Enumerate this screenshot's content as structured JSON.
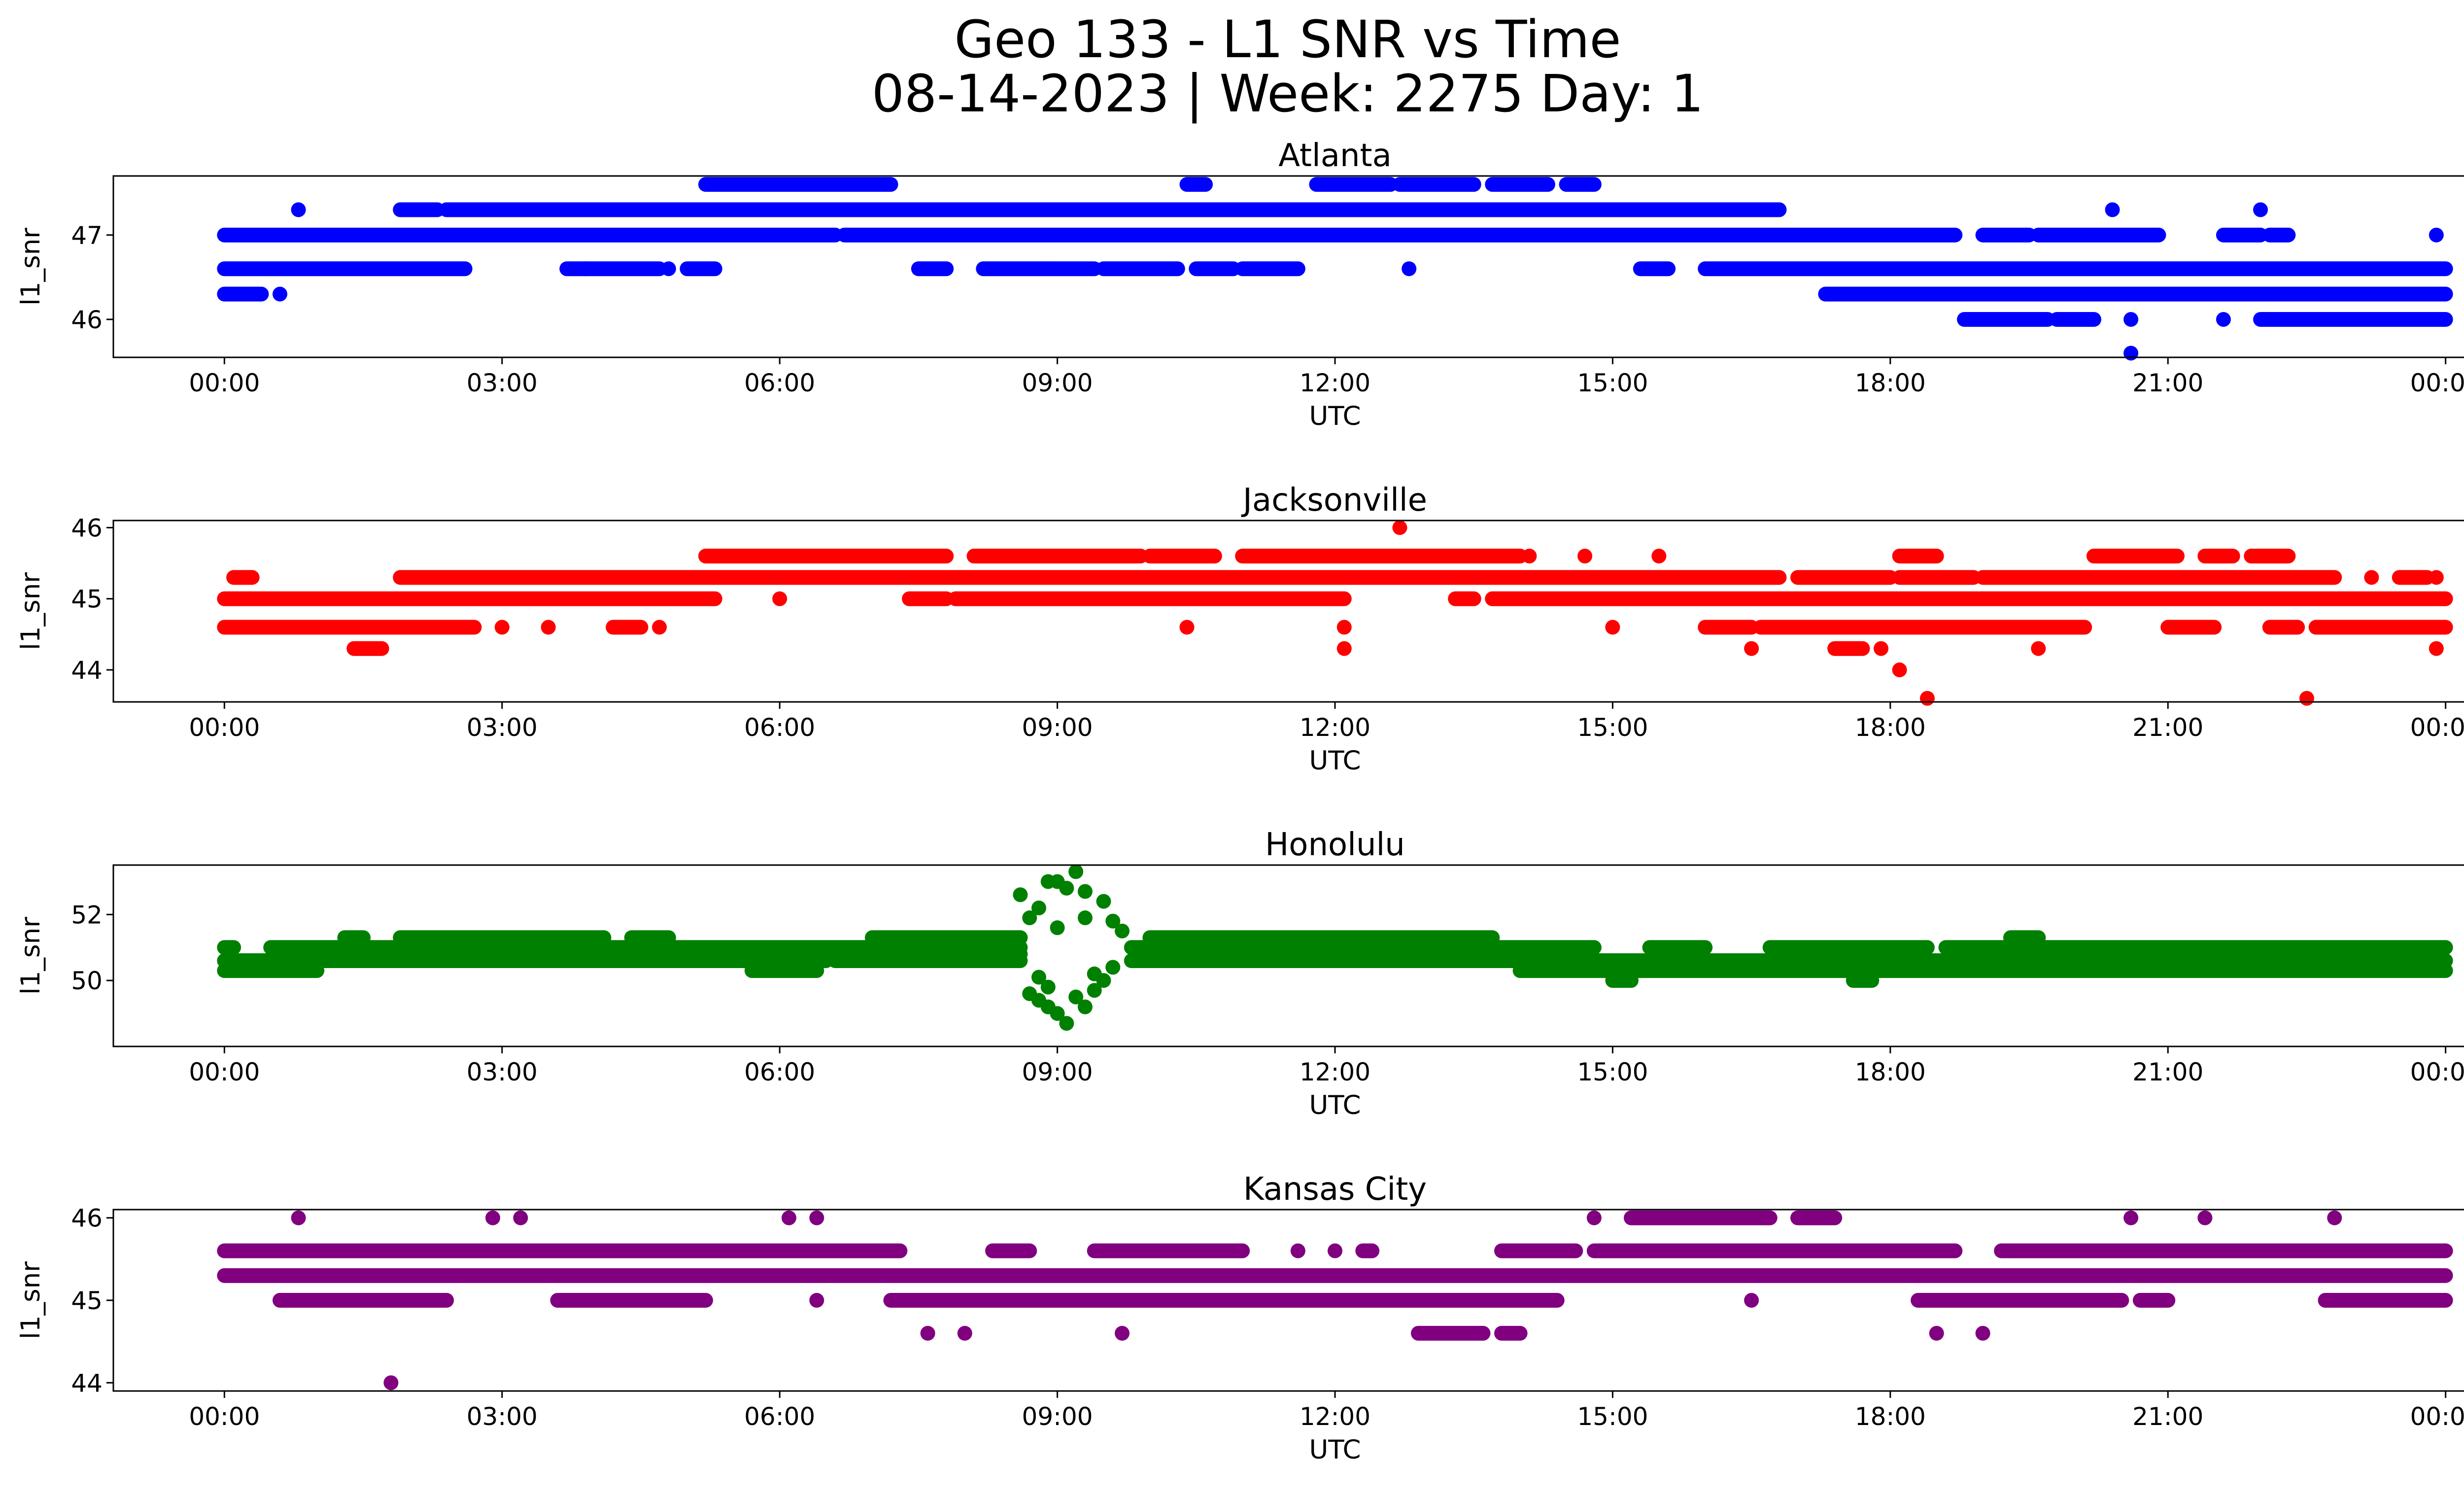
{
  "figure": {
    "title_line1": "Geo 133 - L1 SNR vs Time",
    "title_line2": "08-14-2023 | Week: 2275 Day: 1"
  },
  "chart_data": [
    {
      "type": "scatter",
      "title": "Atlanta",
      "xlabel": "UTC",
      "ylabel": "l1_snr",
      "color": "#0000ff",
      "xticks": [
        "00:00",
        "03:00",
        "06:00",
        "09:00",
        "12:00",
        "15:00",
        "18:00",
        "21:00",
        "00:00"
      ],
      "yticks": [
        46,
        47
      ],
      "xlim_hours": [
        -1.2,
        25.2
      ],
      "ylim": [
        45.55,
        47.7
      ],
      "grid": false,
      "bands": [
        {
          "y": 47.6,
          "ranges": [
            [
              5.2,
              7.2
            ],
            [
              10.4,
              10.6
            ],
            [
              11.8,
              12.6
            ],
            [
              12.7,
              13.5
            ],
            [
              13.7,
              14.3
            ],
            [
              14.5,
              14.8
            ]
          ]
        },
        {
          "y": 47.3,
          "ranges": [
            [
              1.9,
              2.3
            ],
            [
              2.4,
              16.8
            ]
          ]
        },
        {
          "y": 47.0,
          "ranges": [
            [
              0.0,
              6.6
            ],
            [
              6.7,
              18.7
            ],
            [
              19.0,
              19.5
            ],
            [
              19.6,
              20.9
            ],
            [
              21.6,
              22.0
            ],
            [
              22.1,
              22.3
            ]
          ]
        },
        {
          "y": 46.6,
          "ranges": [
            [
              0.0,
              2.6
            ],
            [
              3.7,
              4.7
            ],
            [
              5.0,
              5.3
            ],
            [
              7.5,
              7.8
            ],
            [
              8.2,
              8.9
            ],
            [
              8.9,
              9.4
            ],
            [
              9.5,
              10.3
            ],
            [
              10.5,
              10.9
            ],
            [
              11.0,
              11.6
            ],
            [
              15.3,
              15.6
            ],
            [
              16.0,
              24.0
            ]
          ]
        },
        {
          "y": 46.3,
          "ranges": [
            [
              0.0,
              0.4
            ],
            [
              17.3,
              24.0
            ]
          ]
        },
        {
          "y": 46.0,
          "ranges": [
            [
              18.8,
              19.7
            ],
            [
              19.8,
              20.2
            ],
            [
              22.0,
              24.0
            ]
          ]
        }
      ],
      "points": [
        [
          0.8,
          47.3
        ],
        [
          0.6,
          46.3
        ],
        [
          3.9,
          46.6
        ],
        [
          4.8,
          46.6
        ],
        [
          12.8,
          46.6
        ],
        [
          20.4,
          47.3
        ],
        [
          22.0,
          47.3
        ],
        [
          23.9,
          47.0
        ],
        [
          20.6,
          46.0
        ],
        [
          20.6,
          45.6
        ],
        [
          21.6,
          46.0
        ]
      ]
    },
    {
      "type": "scatter",
      "title": "Jacksonville",
      "xlabel": "UTC",
      "ylabel": "l1_snr",
      "color": "#ff0000",
      "xticks": [
        "00:00",
        "03:00",
        "06:00",
        "09:00",
        "12:00",
        "15:00",
        "18:00",
        "21:00",
        "00:00"
      ],
      "yticks": [
        44,
        45,
        46
      ],
      "xlim_hours": [
        -1.2,
        25.2
      ],
      "ylim": [
        43.55,
        46.1
      ],
      "grid": false,
      "bands": [
        {
          "y": 45.6,
          "ranges": [
            [
              5.2,
              7.8
            ],
            [
              8.1,
              9.5
            ],
            [
              9.5,
              9.9
            ],
            [
              10.0,
              10.7
            ],
            [
              11.0,
              14.0
            ],
            [
              18.1,
              18.5
            ],
            [
              20.2,
              21.1
            ],
            [
              21.4,
              21.7
            ],
            [
              21.9,
              22.3
            ]
          ]
        },
        {
          "y": 45.3,
          "ranges": [
            [
              0.1,
              0.3
            ],
            [
              1.9,
              5.2
            ],
            [
              5.2,
              16.8
            ],
            [
              17.0,
              18.0
            ],
            [
              18.1,
              18.9
            ],
            [
              19.0,
              22.8
            ],
            [
              23.5,
              23.8
            ]
          ]
        },
        {
          "y": 45.0,
          "ranges": [
            [
              0.0,
              5.3
            ],
            [
              7.4,
              7.8
            ],
            [
              7.9,
              12.1
            ],
            [
              13.3,
              13.5
            ],
            [
              13.7,
              24.0
            ]
          ]
        },
        {
          "y": 44.6,
          "ranges": [
            [
              0.0,
              2.7
            ],
            [
              4.2,
              4.5
            ],
            [
              16.0,
              16.5
            ],
            [
              16.6,
              20.1
            ],
            [
              21.0,
              21.5
            ],
            [
              22.1,
              22.4
            ],
            [
              22.6,
              24.0
            ]
          ]
        },
        {
          "y": 44.3,
          "ranges": [
            [
              1.4,
              1.7
            ],
            [
              17.4,
              17.7
            ]
          ]
        }
      ],
      "points": [
        [
          12.7,
          46.0
        ],
        [
          18.4,
          43.6
        ],
        [
          22.5,
          43.6
        ],
        [
          18.1,
          44.0
        ],
        [
          12.1,
          44.3
        ],
        [
          12.1,
          44.6
        ],
        [
          10.4,
          44.6
        ],
        [
          6.0,
          45.0
        ],
        [
          3.0,
          44.6
        ],
        [
          3.5,
          44.6
        ],
        [
          4.7,
          44.6
        ],
        [
          15.0,
          44.6
        ],
        [
          16.5,
          44.3
        ],
        [
          17.9,
          44.3
        ],
        [
          19.6,
          44.3
        ],
        [
          23.9,
          44.3
        ],
        [
          14.1,
          45.6
        ],
        [
          14.7,
          45.6
        ],
        [
          15.5,
          45.6
        ],
        [
          23.9,
          45.3
        ],
        [
          23.2,
          45.3
        ]
      ]
    },
    {
      "type": "scatter",
      "title": "Honolulu",
      "xlabel": "UTC",
      "ylabel": "l1_snr",
      "color": "#008000",
      "xticks": [
        "00:00",
        "03:00",
        "06:00",
        "09:00",
        "12:00",
        "15:00",
        "18:00",
        "21:00",
        "00:00"
      ],
      "yticks": [
        50,
        52
      ],
      "xlim_hours": [
        -1.2,
        25.2
      ],
      "ylim": [
        48.0,
        53.5
      ],
      "grid": false,
      "bands": [
        {
          "y": 51.3,
          "ranges": [
            [
              1.3,
              1.5
            ],
            [
              1.9,
              4.1
            ],
            [
              4.4,
              4.8
            ],
            [
              7.0,
              8.6
            ],
            [
              10.0,
              13.7
            ],
            [
              19.3,
              19.6
            ]
          ]
        },
        {
          "y": 51.0,
          "ranges": [
            [
              0.0,
              0.1
            ],
            [
              0.5,
              8.6
            ],
            [
              9.8,
              14.8
            ],
            [
              15.4,
              16.0
            ],
            [
              16.7,
              18.4
            ],
            [
              18.6,
              24.0
            ]
          ]
        },
        {
          "y": 50.6,
          "ranges": [
            [
              0.0,
              6.5
            ],
            [
              6.6,
              8.6
            ],
            [
              9.8,
              24.0
            ]
          ]
        },
        {
          "y": 50.3,
          "ranges": [
            [
              0.0,
              1.0
            ],
            [
              5.7,
              6.4
            ],
            [
              14.0,
              24.0
            ]
          ]
        },
        {
          "y": 50.0,
          "ranges": [
            [
              15.0,
              15.2
            ],
            [
              17.6,
              17.8
            ]
          ]
        }
      ],
      "points": [
        [
          8.6,
          52.6
        ],
        [
          8.8,
          52.2
        ],
        [
          8.9,
          53.0
        ],
        [
          9.0,
          53.0
        ],
        [
          9.1,
          52.8
        ],
        [
          9.2,
          53.3
        ],
        [
          9.3,
          52.7
        ],
        [
          9.5,
          52.4
        ],
        [
          8.7,
          49.6
        ],
        [
          8.8,
          49.4
        ],
        [
          8.9,
          49.2
        ],
        [
          8.9,
          49.8
        ],
        [
          9.0,
          49.0
        ],
        [
          9.1,
          48.7
        ],
        [
          9.2,
          49.5
        ],
        [
          9.3,
          49.2
        ],
        [
          9.4,
          49.7
        ],
        [
          9.5,
          50.0
        ],
        [
          9.6,
          51.8
        ],
        [
          9.7,
          51.5
        ],
        [
          8.6,
          50.8
        ],
        [
          8.7,
          51.9
        ],
        [
          9.0,
          51.6
        ],
        [
          9.3,
          51.9
        ],
        [
          9.4,
          50.2
        ],
        [
          8.8,
          50.1
        ],
        [
          9.6,
          50.4
        ]
      ]
    },
    {
      "type": "scatter",
      "title": "Kansas City",
      "xlabel": "UTC",
      "ylabel": "l1_snr",
      "color": "#800080",
      "xticks": [
        "00:00",
        "03:00",
        "06:00",
        "09:00",
        "12:00",
        "15:00",
        "18:00",
        "21:00",
        "00:00"
      ],
      "yticks": [
        44,
        45,
        46
      ],
      "xlim_hours": [
        -1.2,
        25.2
      ],
      "ylim": [
        43.9,
        46.1
      ],
      "grid": false,
      "bands": [
        {
          "y": 46.0,
          "ranges": [
            [
              15.2,
              16.7
            ],
            [
              17.0,
              17.4
            ]
          ]
        },
        {
          "y": 45.6,
          "ranges": [
            [
              0.0,
              7.3
            ],
            [
              8.3,
              8.7
            ],
            [
              9.4,
              11.0
            ],
            [
              12.3,
              12.4
            ],
            [
              13.8,
              14.6
            ],
            [
              14.8,
              18.7
            ],
            [
              19.2,
              24.0
            ]
          ]
        },
        {
          "y": 45.3,
          "ranges": [
            [
              0.0,
              24.0
            ]
          ]
        },
        {
          "y": 45.0,
          "ranges": [
            [
              0.6,
              2.4
            ],
            [
              3.6,
              5.2
            ],
            [
              7.2,
              14.4
            ],
            [
              18.3,
              20.5
            ],
            [
              20.7,
              21.0
            ],
            [
              22.7,
              24.0
            ]
          ]
        },
        {
          "y": 44.6,
          "ranges": [
            [
              12.9,
              13.6
            ],
            [
              13.8,
              14.0
            ]
          ]
        }
      ],
      "points": [
        [
          0.8,
          46.0
        ],
        [
          2.9,
          46.0
        ],
        [
          3.2,
          46.0
        ],
        [
          6.1,
          46.0
        ],
        [
          6.4,
          46.0
        ],
        [
          14.8,
          46.0
        ],
        [
          20.6,
          46.0
        ],
        [
          21.4,
          46.0
        ],
        [
          22.8,
          46.0
        ],
        [
          1.8,
          44.0
        ],
        [
          7.6,
          44.6
        ],
        [
          8.0,
          44.6
        ],
        [
          9.7,
          44.6
        ],
        [
          18.5,
          44.6
        ],
        [
          19.0,
          44.6
        ],
        [
          16.5,
          45.0
        ],
        [
          6.4,
          45.0
        ],
        [
          11.6,
          45.6
        ],
        [
          12.0,
          45.6
        ]
      ]
    }
  ]
}
